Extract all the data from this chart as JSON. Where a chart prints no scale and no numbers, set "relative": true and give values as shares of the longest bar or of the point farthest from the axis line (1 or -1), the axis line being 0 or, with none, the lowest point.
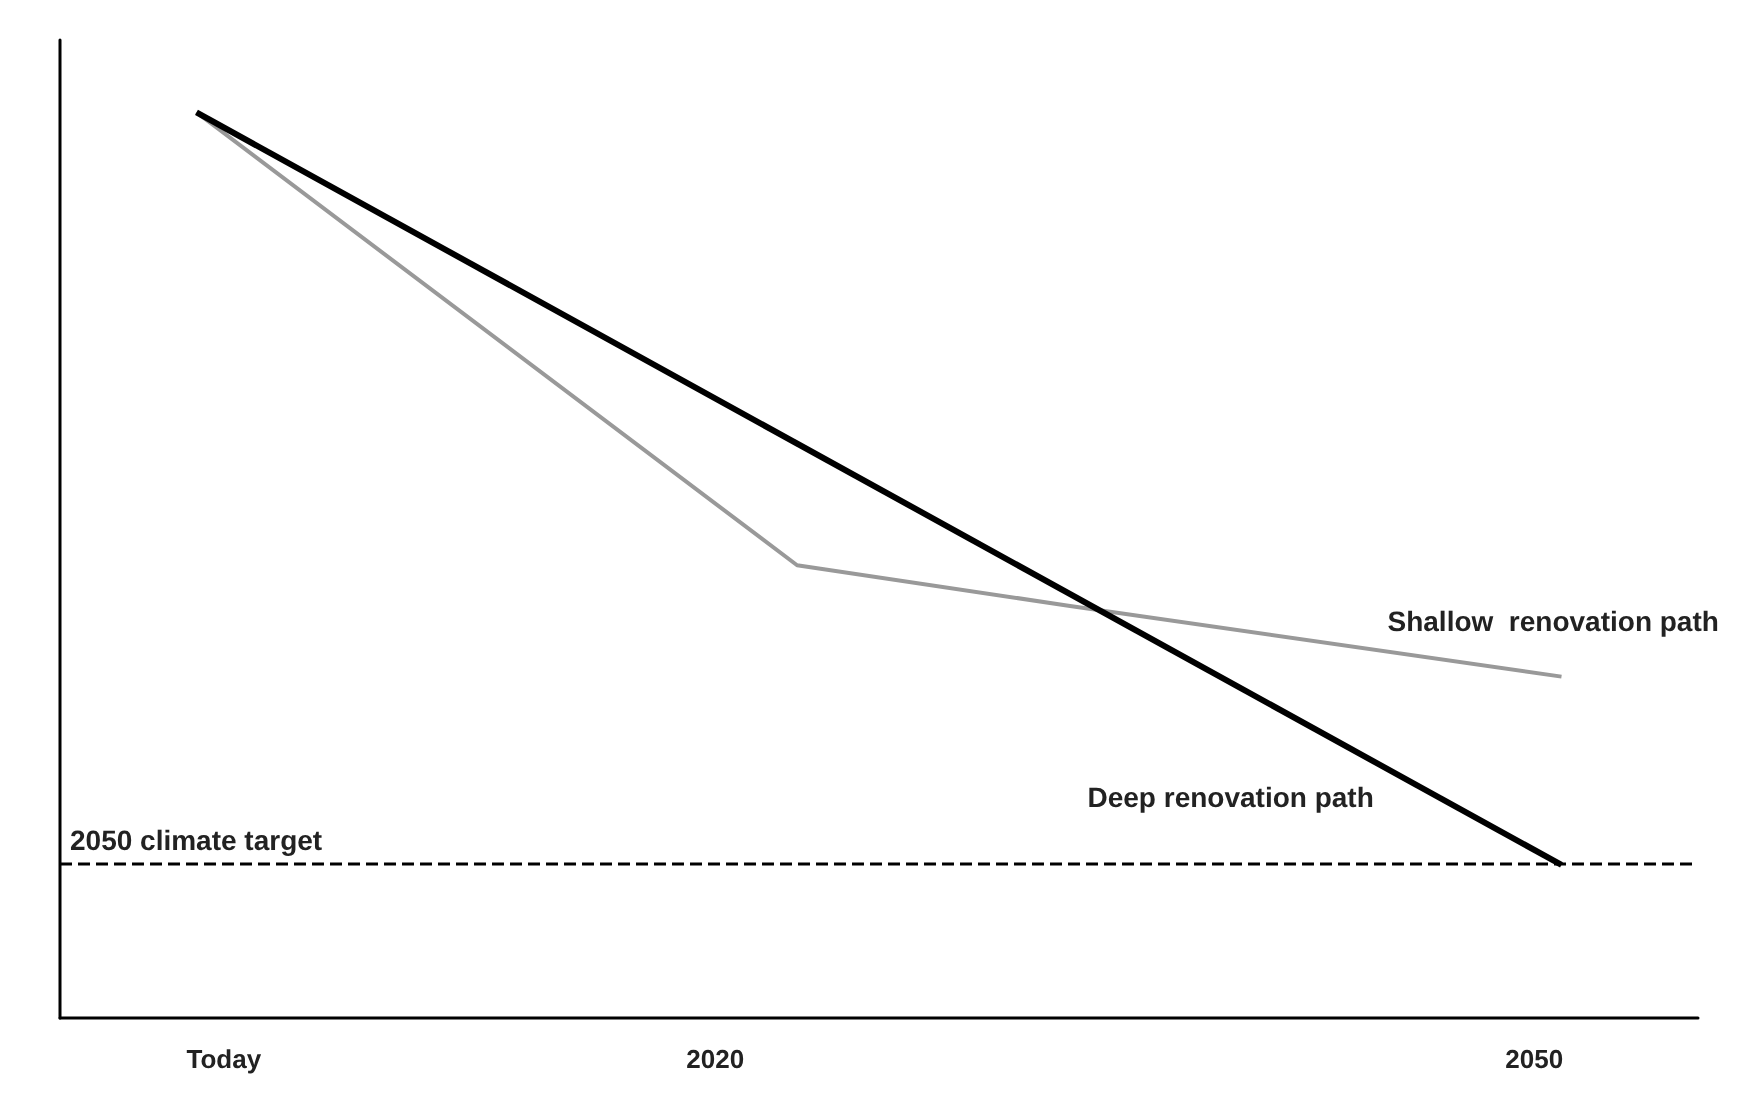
{
  "chart_data": {
    "type": "line",
    "relative": true,
    "xlim": [
      1996,
      2056
    ],
    "xticks": [
      {
        "value": 2002,
        "label": "Today"
      },
      2020,
      2050
    ],
    "series": [
      {
        "name": "Shallow  renovation path",
        "color": "#999999",
        "x": [
          2001,
          2023,
          2033,
          2051
        ],
        "values": [
          1,
          0.5,
          0.455,
          0.377
        ]
      },
      {
        "name": "Deep renovation path",
        "color": "#000000",
        "x": [
          2001,
          2051
        ],
        "values": [
          1,
          0.169
        ]
      }
    ],
    "ref_lines": [
      {
        "axis": "y",
        "value": 0.169,
        "label": "2050 climate target",
        "color": "#000000",
        "line_style": "dashed"
      }
    ],
    "grid": false,
    "legend": false,
    "marker": "none",
    "line_style": "solid"
  }
}
